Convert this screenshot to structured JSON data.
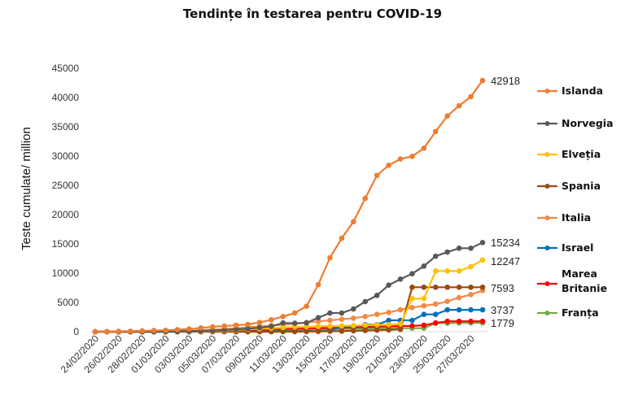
{
  "chart_data": {
    "type": "line",
    "title": "Tendințe în testarea pentru COVID-19",
    "xlabel": "",
    "ylabel": "Teste cumulate/ million",
    "ylim": [
      0,
      45000
    ],
    "yticks": [
      0,
      5000,
      10000,
      15000,
      20000,
      25000,
      30000,
      35000,
      40000,
      45000
    ],
    "grid": false,
    "legend_position": "right",
    "x": [
      "24/02/2020",
      "25/02/2020",
      "26/02/2020",
      "27/02/2020",
      "28/02/2020",
      "29/02/2020",
      "01/03/2020",
      "02/03/2020",
      "03/03/2020",
      "04/03/2020",
      "05/03/2020",
      "06/03/2020",
      "07/03/2020",
      "08/03/2020",
      "09/03/2020",
      "10/03/2020",
      "11/03/2020",
      "12/03/2020",
      "13/03/2020",
      "14/03/2020",
      "15/03/2020",
      "16/03/2020",
      "17/03/2020",
      "18/03/2020",
      "19/03/2020",
      "20/03/2020",
      "21/03/2020",
      "22/03/2020",
      "23/03/2020",
      "24/03/2020",
      "25/03/2020",
      "26/03/2020",
      "27/03/2020",
      "28/03/2020"
    ],
    "x_tick_labels": [
      "24/02/2020",
      "26/02/2020",
      "28/02/2020",
      "01/03/2020",
      "03/03/2020",
      "05/03/2020",
      "07/03/2020",
      "09/03/2020",
      "11/03/2020",
      "13/03/2020",
      "15/03/2020",
      "17/03/2020",
      "19/03/2020",
      "21/03/2020",
      "23/03/2020",
      "25/03/2020",
      "27/03/2020"
    ],
    "series": [
      {
        "name": "Islanda",
        "color": "#ED7D31",
        "end_label": "42918",
        "values": [
          10,
          30,
          60,
          100,
          150,
          200,
          250,
          350,
          460,
          650,
          830,
          970,
          1100,
          1250,
          1570,
          2040,
          2600,
          3200,
          4350,
          8050,
          12640,
          15970,
          18800,
          22780,
          26700,
          28430,
          29500,
          29950,
          31350,
          34200,
          36850,
          38600,
          40140,
          42918
        ]
      },
      {
        "name": "Norvegia",
        "color": "#595959",
        "end_label": "15234",
        "values": [
          0,
          0,
          0,
          0,
          0,
          0,
          20,
          50,
          100,
          150,
          200,
          300,
          400,
          500,
          700,
          900,
          1500,
          1450,
          1500,
          2400,
          3190,
          3190,
          3890,
          5140,
          6200,
          7960,
          8980,
          9900,
          11200,
          12900,
          13600,
          14260,
          14260,
          15234
        ]
      },
      {
        "name": "Elveția",
        "color": "#FFC000",
        "end_label": "12247",
        "values": [
          0,
          0,
          0,
          0,
          0,
          10,
          20,
          40,
          60,
          100,
          150,
          200,
          300,
          400,
          500,
          600,
          700,
          800,
          850,
          900,
          950,
          1000,
          1050,
          1100,
          1150,
          1200,
          1300,
          5650,
          5650,
          10370,
          10370,
          10370,
          11110,
          12247
        ]
      },
      {
        "name": "Spania",
        "color": "#9E480E",
        "end_label": "7593",
        "values": [
          0,
          0,
          0,
          0,
          0,
          0,
          0,
          0,
          0,
          0,
          0,
          0,
          0,
          0,
          0,
          0,
          10,
          20,
          30,
          50,
          80,
          100,
          150,
          200,
          250,
          300,
          400,
          7593,
          7593,
          7593,
          7593,
          7593,
          7593,
          7593
        ]
      },
      {
        "name": "Italia",
        "color": "#F08A45",
        "end_label": "",
        "values": [
          0,
          5,
          10,
          20,
          30,
          50,
          70,
          100,
          150,
          250,
          350,
          450,
          600,
          750,
          900,
          1050,
          1200,
          1350,
          1570,
          1760,
          1940,
          2130,
          2310,
          2600,
          2960,
          3290,
          3750,
          4120,
          4440,
          4720,
          5180,
          5830,
          6350,
          7040
        ]
      },
      {
        "name": "Israel",
        "color": "#0070C0",
        "end_label": "3737",
        "values": [
          0,
          0,
          0,
          0,
          0,
          0,
          0,
          0,
          0,
          0,
          10,
          20,
          30,
          40,
          50,
          60,
          70,
          80,
          90,
          100,
          180,
          875,
          875,
          1200,
          1200,
          1940,
          1940,
          1940,
          2960,
          2960,
          3737,
          3737,
          3737,
          3737
        ]
      },
      {
        "name": "Marea Britanie",
        "color": "#FF0000",
        "end_label": "1779",
        "values": [
          0,
          0,
          0,
          0,
          0,
          0,
          10,
          20,
          50,
          100,
          150,
          200,
          250,
          300,
          350,
          400,
          450,
          500,
          550,
          600,
          650,
          700,
          750,
          800,
          850,
          900,
          950,
          1000,
          1100,
          1500,
          1779,
          1779,
          1779,
          1779
        ]
      },
      {
        "name": "Franța",
        "color": "#70AD47",
        "end_label": "",
        "values": [
          0,
          0,
          0,
          0,
          0,
          0,
          0,
          10,
          20,
          30,
          40,
          50,
          50,
          50,
          50,
          100,
          150,
          200,
          250,
          300,
          400,
          450,
          500,
          500,
          550,
          550,
          600,
          600,
          600,
          1450,
          1450,
          1500,
          1500,
          1500
        ]
      }
    ]
  }
}
